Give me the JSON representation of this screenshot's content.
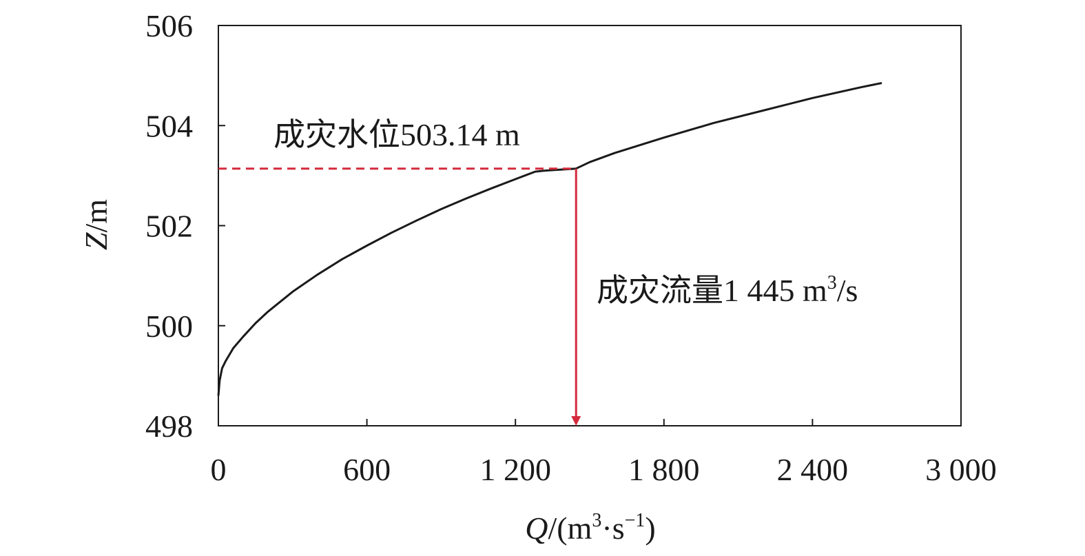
{
  "chart_data": {
    "type": "line",
    "xlabel": {
      "var": "Q",
      "unit_open": "/(m",
      "unit_mid": "·s",
      "unit_close": ")",
      "sup1": "3",
      "sup2": "−1"
    },
    "ylabel": {
      "var": "Z",
      "unit": "/m"
    },
    "xlim": [
      0,
      3000
    ],
    "ylim": [
      498,
      506
    ],
    "x_ticks": [
      0,
      600,
      1200,
      1800,
      2400,
      3000
    ],
    "x_tick_labels": [
      "0",
      "600",
      "1 200",
      "1 800",
      "2 400",
      "3 000"
    ],
    "y_ticks": [
      498,
      500,
      502,
      504,
      506
    ],
    "y_tick_labels": [
      "498",
      "500",
      "502",
      "504",
      "506"
    ],
    "grid": false,
    "series": [
      {
        "color": "#1a1a1a",
        "x": [
          0,
          5,
          15,
          30,
          60,
          100,
          150,
          200,
          300,
          400,
          500,
          600,
          700,
          800,
          900,
          1000,
          1100,
          1200,
          1280,
          1320,
          1380,
          1445,
          1500,
          1600,
          1800,
          2000,
          2200,
          2400,
          2600,
          2680
        ],
        "y": [
          498.6,
          498.9,
          499.15,
          499.3,
          499.55,
          499.78,
          500.05,
          500.28,
          500.68,
          501.02,
          501.33,
          501.6,
          501.86,
          502.1,
          502.33,
          502.54,
          502.74,
          502.93,
          503.08,
          503.1,
          503.12,
          503.14,
          503.27,
          503.45,
          503.76,
          504.05,
          504.3,
          504.55,
          504.77,
          504.85
        ]
      }
    ],
    "annotations": {
      "water_level": {
        "text": "成灾水位503.14 m",
        "y": 503.14,
        "color": "#d42a3c"
      },
      "discharge": {
        "text": "成灾流量1 445 m",
        "sup": "3",
        "suffix": "/s",
        "x": 1445,
        "color": "#d42a3c"
      }
    }
  }
}
